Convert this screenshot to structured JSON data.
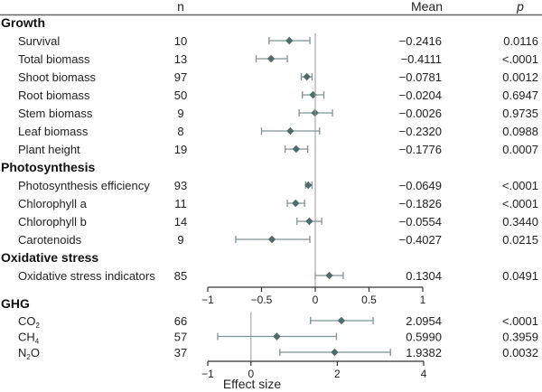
{
  "chart_data": {
    "type": "forest",
    "headers": {
      "n": "n",
      "mean": "Mean",
      "p": "p"
    },
    "xlabel": "Effect size",
    "colors": {
      "marker": "#4f6c6c",
      "whisker": "#7d9494",
      "axis": "#333333",
      "zero_line": "#999999"
    },
    "panels": [
      {
        "name": "main",
        "xlim": [
          -1,
          1
        ],
        "ticks": [
          -1,
          -0.5,
          0,
          0.5,
          1
        ],
        "tick_labels": [
          "−1",
          "−0.5",
          "0",
          "0.5",
          "1"
        ],
        "groups": [
          {
            "title": "Growth",
            "rows": [
              {
                "label": "Survival",
                "n": "10",
                "mean": -0.2416,
                "mean_text": "−0.2416",
                "p": "0.0116",
                "ci": [
                  -0.43,
                  -0.05
                ]
              },
              {
                "label": "Total biomass",
                "n": "13",
                "mean": -0.4111,
                "mean_text": "−0.4111",
                "p": "<.0001",
                "ci": [
                  -0.55,
                  -0.26
                ]
              },
              {
                "label": "Shoot biomass",
                "n": "97",
                "mean": -0.0781,
                "mean_text": "−0.0781",
                "p": "0.0012",
                "ci": [
                  -0.13,
                  -0.03
                ]
              },
              {
                "label": "Root biomass",
                "n": "50",
                "mean": -0.0204,
                "mean_text": "−0.0204",
                "p": "0.6947",
                "ci": [
                  -0.12,
                  0.08
                ]
              },
              {
                "label": "Stem biomass",
                "n": "9",
                "mean": -0.0026,
                "mean_text": "−0.0026",
                "p": "0.9735",
                "ci": [
                  -0.15,
                  0.16
                ]
              },
              {
                "label": "Leaf biomass",
                "n": "8",
                "mean": -0.232,
                "mean_text": "−0.2320",
                "p": "0.0988",
                "ci": [
                  -0.5,
                  0.04
                ]
              },
              {
                "label": "Plant height",
                "n": "19",
                "mean": -0.1776,
                "mean_text": "−0.1776",
                "p": "0.0007",
                "ci": [
                  -0.28,
                  -0.07
                ]
              }
            ]
          },
          {
            "title": "Photosynthesis",
            "rows": [
              {
                "label": "Photosynthesis  efficiency",
                "n": "93",
                "mean": -0.0649,
                "mean_text": "−0.0649",
                "p": "<.0001",
                "ci": [
                  -0.09,
                  -0.03
                ]
              },
              {
                "label": "Chlorophyll a",
                "n": "11",
                "mean": -0.1826,
                "mean_text": "−0.1826",
                "p": "<.0001",
                "ci": [
                  -0.26,
                  -0.1
                ]
              },
              {
                "label": "Chlorophyll b",
                "n": "14",
                "mean": -0.0554,
                "mean_text": "−0.0554",
                "p": "0.3440",
                "ci": [
                  -0.17,
                  0.06
                ]
              },
              {
                "label": "Carotenoids",
                "n": "9",
                "mean": -0.4027,
                "mean_text": "−0.4027",
                "p": "0.0215",
                "ci": [
                  -0.74,
                  -0.05
                ]
              }
            ]
          },
          {
            "title": "Oxidative stress",
            "rows": [
              {
                "label": "Oxidative stress indicators",
                "n": "85",
                "mean": 0.1304,
                "mean_text": "0.1304",
                "p": "0.0491",
                "ci": [
                  0.0,
                  0.26
                ]
              }
            ]
          }
        ]
      },
      {
        "name": "ghg",
        "xlim": [
          -1,
          4
        ],
        "ticks": [
          -1,
          0,
          2,
          4
        ],
        "tick_labels": [
          "−1",
          "0",
          "2",
          "4"
        ],
        "groups": [
          {
            "title": "GHG",
            "rows": [
              {
                "label": "CO",
                "sub": "2",
                "n": "66",
                "mean": 2.0954,
                "mean_text": "2.0954",
                "p": "<.0001",
                "ci": [
                  1.38,
                  2.83
                ]
              },
              {
                "label": "CH",
                "sub": "4",
                "n": "57",
                "mean": 0.599,
                "mean_text": "0.5990",
                "p": "0.3959",
                "ci": [
                  -0.77,
                  1.98
                ]
              },
              {
                "label": "N",
                "sub": "2",
                "suffix": "O",
                "n": "37",
                "mean": 1.9382,
                "mean_text": "1.9382",
                "p": "0.0032",
                "ci": [
                  0.67,
                  3.23
                ]
              }
            ]
          }
        ]
      }
    ]
  }
}
